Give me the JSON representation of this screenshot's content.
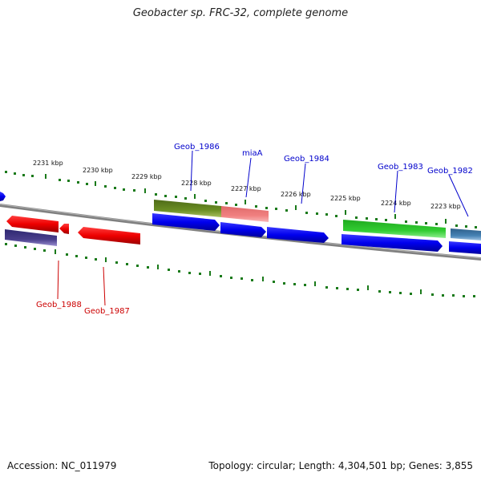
{
  "title": "Geobacter sp. FRC-32, complete genome",
  "footer": {
    "accession": "Accession: NC_011979",
    "summary": "Topology: circular; Length: 4,304,501 bp; Genes: 3,855"
  },
  "ticks": [
    {
      "label": "2231 kbp"
    },
    {
      "label": "2230 kbp"
    },
    {
      "label": "2229 kbp"
    },
    {
      "label": "2228 kbp"
    },
    {
      "label": "2227 kbp"
    },
    {
      "label": "2226 kbp"
    },
    {
      "label": "2225 kbp"
    },
    {
      "label": "2224 kbp"
    },
    {
      "label": "2223 kbp"
    }
  ],
  "gene_labels": [
    {
      "name": "Geob_1986",
      "color": "#0000cc"
    },
    {
      "name": "miaA",
      "color": "#0000cc"
    },
    {
      "name": "Geob_1984",
      "color": "#0000cc"
    },
    {
      "name": "Geob_1983",
      "color": "#0000cc"
    },
    {
      "name": "Geob_1982",
      "color": "#0000cc"
    },
    {
      "name": "Geob_1988",
      "color": "#cc0000"
    },
    {
      "name": "Geob_1987",
      "color": "#cc0000"
    }
  ],
  "colors": {
    "forward_cds": "#0000ee",
    "reverse_cds": "#ee0000",
    "olive_feature": "#6b8e23",
    "pink_feature": "#f08080",
    "green_feature": "#32cd32",
    "steel_feature": "#4682b4",
    "purple_feature": "#483d8b",
    "backbone": "#808080",
    "tick_dots": "#1a7a1a"
  }
}
